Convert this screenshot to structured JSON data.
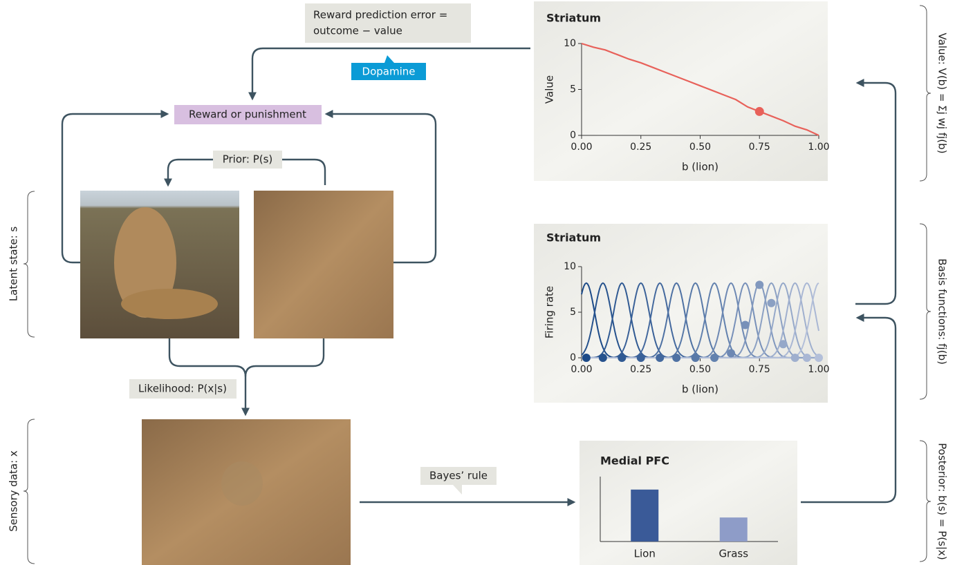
{
  "labels": {
    "rpe_line1": "Reward prediction error =",
    "rpe_line2": "outcome − value",
    "dopamine": "Dopamine",
    "reward": "Reward or punishment",
    "prior": "Prior: P(s)",
    "likelihood": "Likelihood: P(x|s)",
    "bayes": "Bayes’ rule",
    "latent": "Latent state: s",
    "sensory": "Sensory data: x",
    "value_eq": "Value: V(b) = Σj wj fj(b)",
    "basis_eq": "Basis functions: fj(b)",
    "posterior_eq": "Posterior: b(s) = P(s|x)"
  },
  "chart_data": [
    {
      "type": "line",
      "title": "Striatum",
      "xlabel": "b (lion)",
      "ylabel": "Value",
      "x": [
        0,
        0.05,
        0.1,
        0.15,
        0.2,
        0.25,
        0.3,
        0.35,
        0.4,
        0.45,
        0.5,
        0.55,
        0.6,
        0.65,
        0.7,
        0.75,
        0.8,
        0.85,
        0.9,
        0.95,
        1.0
      ],
      "values": [
        10,
        9.6,
        9.3,
        8.8,
        8.3,
        7.9,
        7.4,
        6.9,
        6.4,
        5.9,
        5.4,
        4.9,
        4.4,
        3.9,
        3.1,
        2.6,
        2.1,
        1.6,
        1.0,
        0.6,
        0
      ],
      "color": "#e8615a",
      "highlight": {
        "x": 0.75,
        "y": 2.6
      },
      "xlim": [
        0,
        1
      ],
      "ylim": [
        0,
        10
      ],
      "xticks": [
        {
          "value": 0,
          "label": "0.00"
        },
        {
          "value": 0.25,
          "label": "0.25"
        },
        {
          "value": 0.5,
          "label": "0.50"
        },
        {
          "value": 0.75,
          "label": "0.75"
        },
        {
          "value": 1,
          "label": "1.00"
        }
      ],
      "yticks": [
        0,
        5,
        10
      ]
    },
    {
      "type": "basis",
      "title": "Striatum",
      "xlabel": "b (lion)",
      "ylabel": "Firing rate",
      "x": [
        0.02,
        0.09,
        0.17,
        0.25,
        0.33,
        0.4,
        0.48,
        0.56,
        0.63,
        0.69,
        0.75,
        0.8,
        0.85,
        0.9,
        0.95,
        1.0
      ],
      "values": [
        0,
        0,
        0,
        0,
        0,
        0,
        0,
        0,
        0.5,
        3.6,
        8,
        6,
        1.5,
        0,
        0,
        0
      ],
      "basis_peak": 8.2,
      "basis_width": 0.035,
      "color_range": [
        "#1c4a88",
        "#b3bfd9"
      ],
      "xlim": [
        0,
        1
      ],
      "ylim": [
        0,
        10
      ],
      "xticks": [
        {
          "value": 0,
          "label": "0.00"
        },
        {
          "value": 0.25,
          "label": "0.25"
        },
        {
          "value": 0.5,
          "label": "0.50"
        },
        {
          "value": 0.75,
          "label": "0.75"
        },
        {
          "value": 1,
          "label": "1.00"
        }
      ],
      "yticks": [
        0,
        5,
        10
      ]
    },
    {
      "type": "bar",
      "title": "Medial PFC",
      "categories": [
        "Lion",
        "Grass"
      ],
      "values": [
        0.8,
        0.37
      ],
      "colors": [
        "#3a5a98",
        "#8e9cc8"
      ],
      "ylim": [
        0,
        1
      ]
    }
  ]
}
